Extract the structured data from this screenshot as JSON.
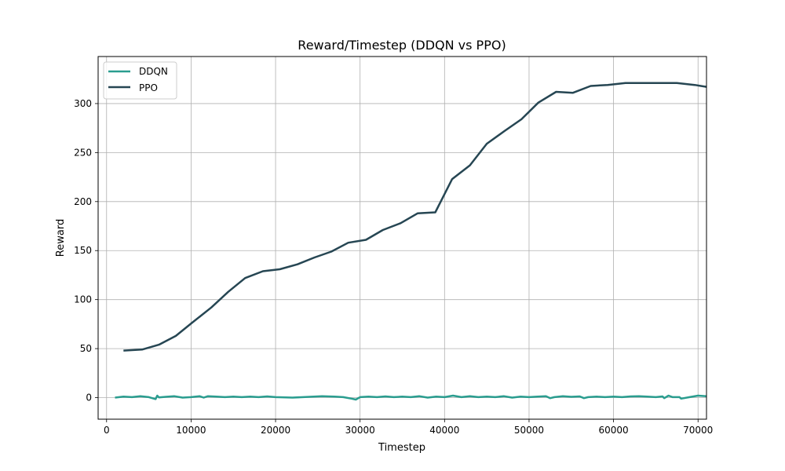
{
  "chart_data": {
    "type": "line",
    "title": "Reward/Timestep (DDQN vs PPO)",
    "xlabel": "Timestep",
    "ylabel": "Reward",
    "xlim": [
      -1000,
      71000
    ],
    "ylim": [
      -22,
      348
    ],
    "x_ticks": [
      0,
      10000,
      20000,
      30000,
      40000,
      50000,
      60000,
      70000
    ],
    "x_tick_labels": [
      "0",
      "10000",
      "20000",
      "30000",
      "40000",
      "50000",
      "60000",
      "70000"
    ],
    "y_ticks": [
      0,
      50,
      100,
      150,
      200,
      250,
      300
    ],
    "y_tick_labels": [
      "0",
      "50",
      "100",
      "150",
      "200",
      "250",
      "300"
    ],
    "grid": true,
    "legend_position": "top-left",
    "series": [
      {
        "name": "DDQN",
        "color": "#2a9d8f",
        "x": [
          1000,
          2000,
          3000,
          4000,
          5000,
          5800,
          6000,
          6200,
          7000,
          8000,
          9000,
          10000,
          11000,
          11500,
          12000,
          13000,
          14000,
          15000,
          16000,
          17000,
          18000,
          19000,
          20000,
          22000,
          24000,
          25500,
          27000,
          28000,
          29000,
          29500,
          30000,
          31000,
          32000,
          33000,
          34000,
          35000,
          36000,
          37000,
          38000,
          39000,
          40000,
          41000,
          42000,
          43000,
          44000,
          45000,
          46000,
          47000,
          48000,
          49000,
          50000,
          51000,
          52000,
          52500,
          53000,
          54000,
          55000,
          56000,
          56500,
          57000,
          58000,
          59000,
          60000,
          61000,
          62000,
          63000,
          64000,
          65000,
          65800,
          66000,
          66500,
          67000,
          67800,
          68000,
          69000,
          70000,
          71000
        ],
        "y": [
          0,
          1,
          0.5,
          1.5,
          0.5,
          -1.5,
          2,
          0.3,
          0.8,
          1.5,
          0,
          0.5,
          1.5,
          0,
          1.5,
          1,
          0.5,
          1,
          0.5,
          1,
          0.5,
          1.2,
          0.5,
          0,
          0.8,
          1.5,
          1,
          0.5,
          -1,
          -2,
          0.5,
          1,
          0.5,
          1.2,
          0.5,
          1,
          0.5,
          1.5,
          0,
          1,
          0.5,
          2,
          0.5,
          1.5,
          0.5,
          1,
          0.5,
          1.5,
          0,
          1,
          0.5,
          1,
          1.5,
          -0.5,
          0.5,
          1.5,
          0.8,
          1.2,
          -0.5,
          0.5,
          1,
          0.5,
          1,
          0.5,
          1.2,
          1.5,
          1,
          0.5,
          1.2,
          -0.5,
          2,
          0.5,
          0.5,
          -1,
          0.5,
          2,
          1.5
        ]
      },
      {
        "name": "PPO",
        "color": "#264653",
        "x": [
          2000,
          4200,
          6200,
          8200,
          10200,
          12400,
          14400,
          16400,
          18500,
          20500,
          22600,
          24600,
          26600,
          28600,
          30700,
          32700,
          34800,
          36800,
          38900,
          40900,
          43000,
          45000,
          47100,
          49100,
          51100,
          53200,
          55200,
          57300,
          59300,
          61400,
          63400,
          65500,
          67500,
          69600,
          71000
        ],
        "y": [
          48,
          49,
          54,
          63,
          77,
          92,
          108,
          122,
          129,
          131,
          136,
          143,
          149,
          158,
          161,
          171,
          178,
          188,
          189,
          223,
          237,
          259,
          272,
          284,
          301,
          312,
          311,
          318,
          319,
          321,
          321,
          321,
          321,
          319,
          317
        ]
      }
    ]
  }
}
